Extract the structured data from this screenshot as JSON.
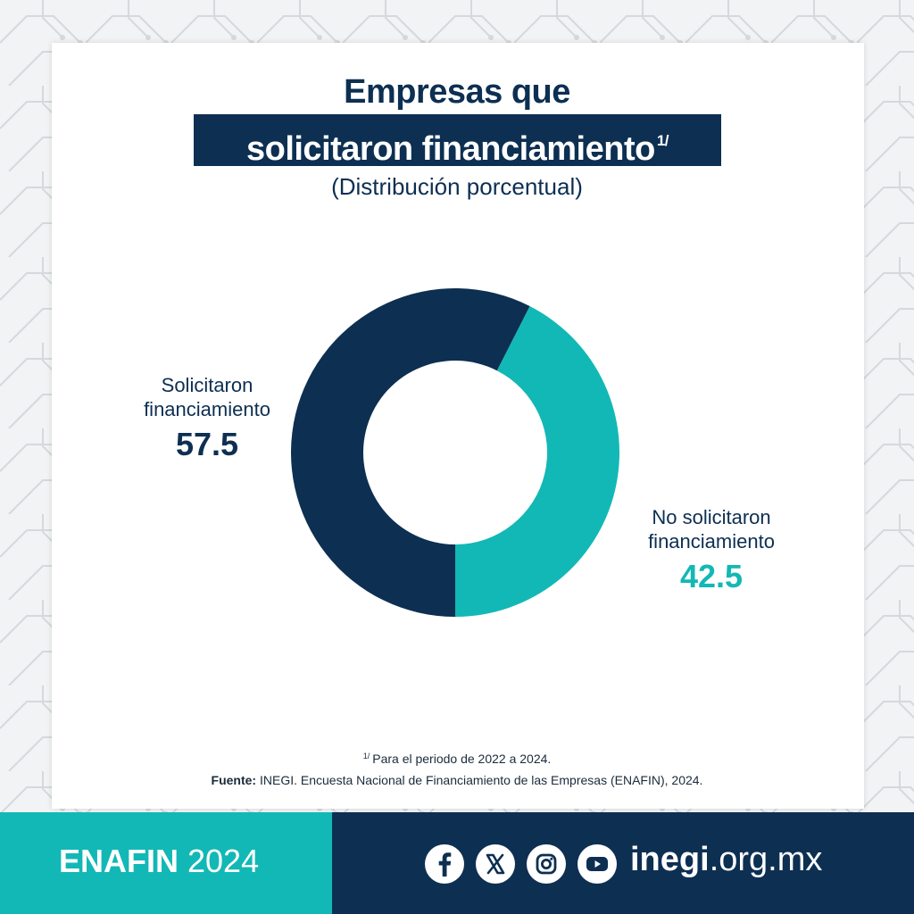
{
  "header": {
    "title_line1": "Empresas que",
    "title_line2": "solicitaron financiamiento",
    "title_superscript": "1/",
    "subtitle": "(Distribución porcentual)"
  },
  "chart_data": {
    "type": "pie",
    "title": "Empresas que solicitaron financiamiento",
    "subtitle": "(Distribución porcentual)",
    "slices": [
      {
        "label": "Solicitaron financiamiento",
        "value": 57.5,
        "value_label": "57.5",
        "color": "#0d2f52"
      },
      {
        "label": "No solicitaron financiamiento",
        "value": 42.5,
        "value_label": "42.5",
        "color": "#12b8b6"
      }
    ],
    "donut": true
  },
  "labels": {
    "solicitaron_line1": "Solicitaron",
    "solicitaron_line2": "financiamiento",
    "no_solicitaron_line1": "No solicitaron",
    "no_solicitaron_line2": "financiamiento"
  },
  "footnote": {
    "marker": "1/",
    "text": "Para el periodo de 2022 a 2024."
  },
  "source": {
    "label": "Fuente:",
    "text": "INEGI. Encuesta Nacional de Financiamiento de las Empresas (ENAFIN), 2024."
  },
  "footer": {
    "brand_bold": "ENAFIN",
    "brand_year": "2024",
    "site_bold": "inegi",
    "site_rest": ".org.mx",
    "social_icons": [
      "facebook-icon",
      "x-icon",
      "instagram-icon",
      "youtube-icon"
    ]
  },
  "colors": {
    "navy": "#0d2f52",
    "teal": "#12b8b6",
    "white": "#ffffff"
  }
}
